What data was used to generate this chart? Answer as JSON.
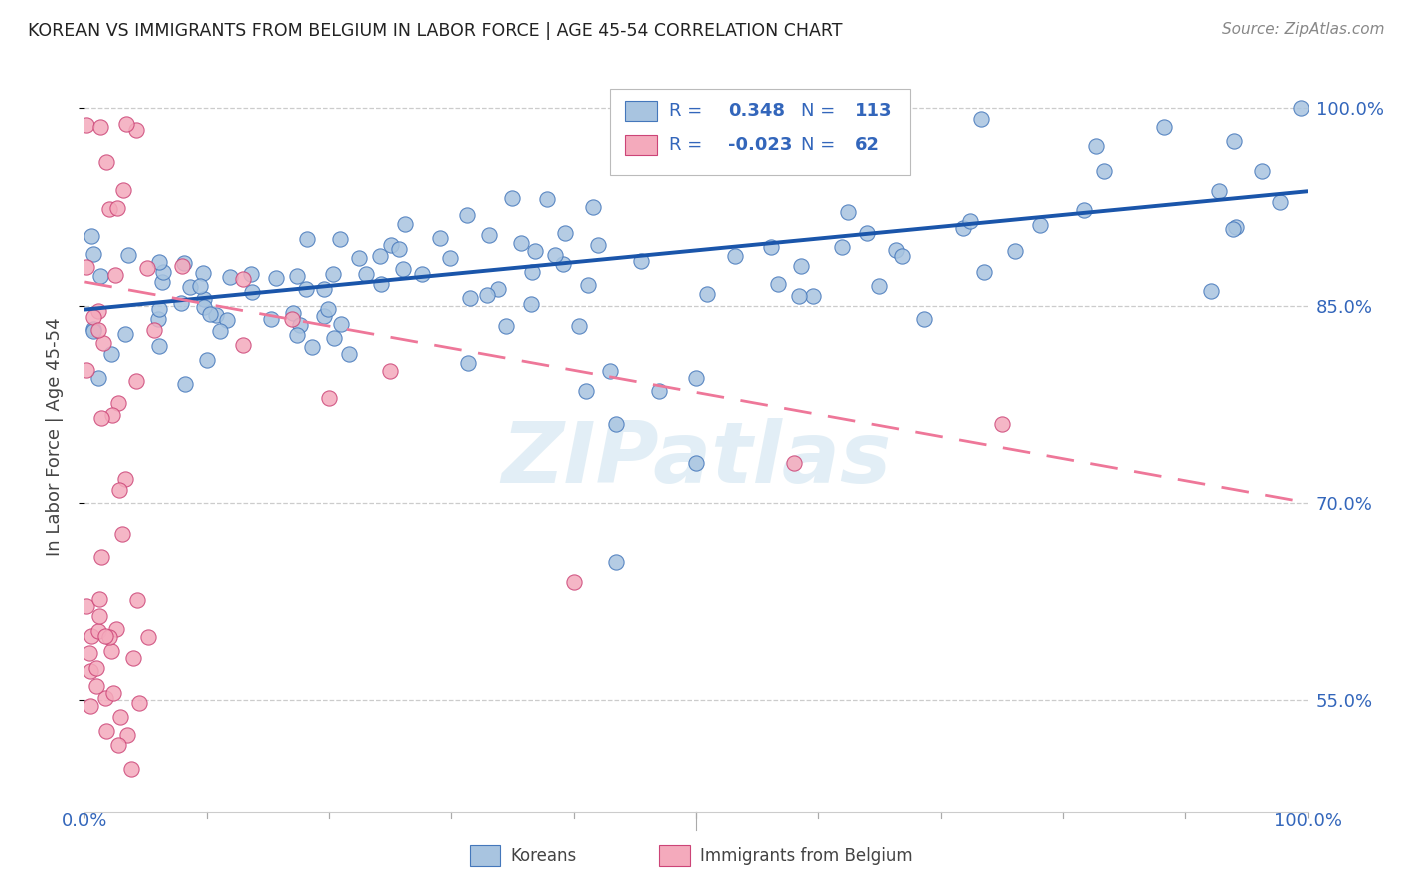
{
  "title": "KOREAN VS IMMIGRANTS FROM BELGIUM IN LABOR FORCE | AGE 45-54 CORRELATION CHART",
  "source": "Source: ZipAtlas.com",
  "ylabel": "In Labor Force | Age 45-54",
  "xlim": [
    0.0,
    1.0
  ],
  "ylim": [
    0.465,
    1.035
  ],
  "yticks": [
    0.55,
    0.7,
    0.85,
    1.0
  ],
  "ytick_labels": [
    "55.0%",
    "70.0%",
    "85.0%",
    "100.0%"
  ],
  "blue_color": "#A8C4E0",
  "blue_edge": "#4477BB",
  "pink_color": "#F4AABC",
  "pink_edge": "#CC4477",
  "line_blue": "#1A55AA",
  "line_pink": "#EE7799",
  "axis_color": "#3366BB",
  "grid_color": "#CCCCCC",
  "blue_trend_y_start": 0.847,
  "blue_trend_y_end": 0.937,
  "pink_trend_y_start": 0.868,
  "pink_trend_y_end": 0.7,
  "watermark_color": "#D0E4F0",
  "watermark_alpha": 0.6
}
